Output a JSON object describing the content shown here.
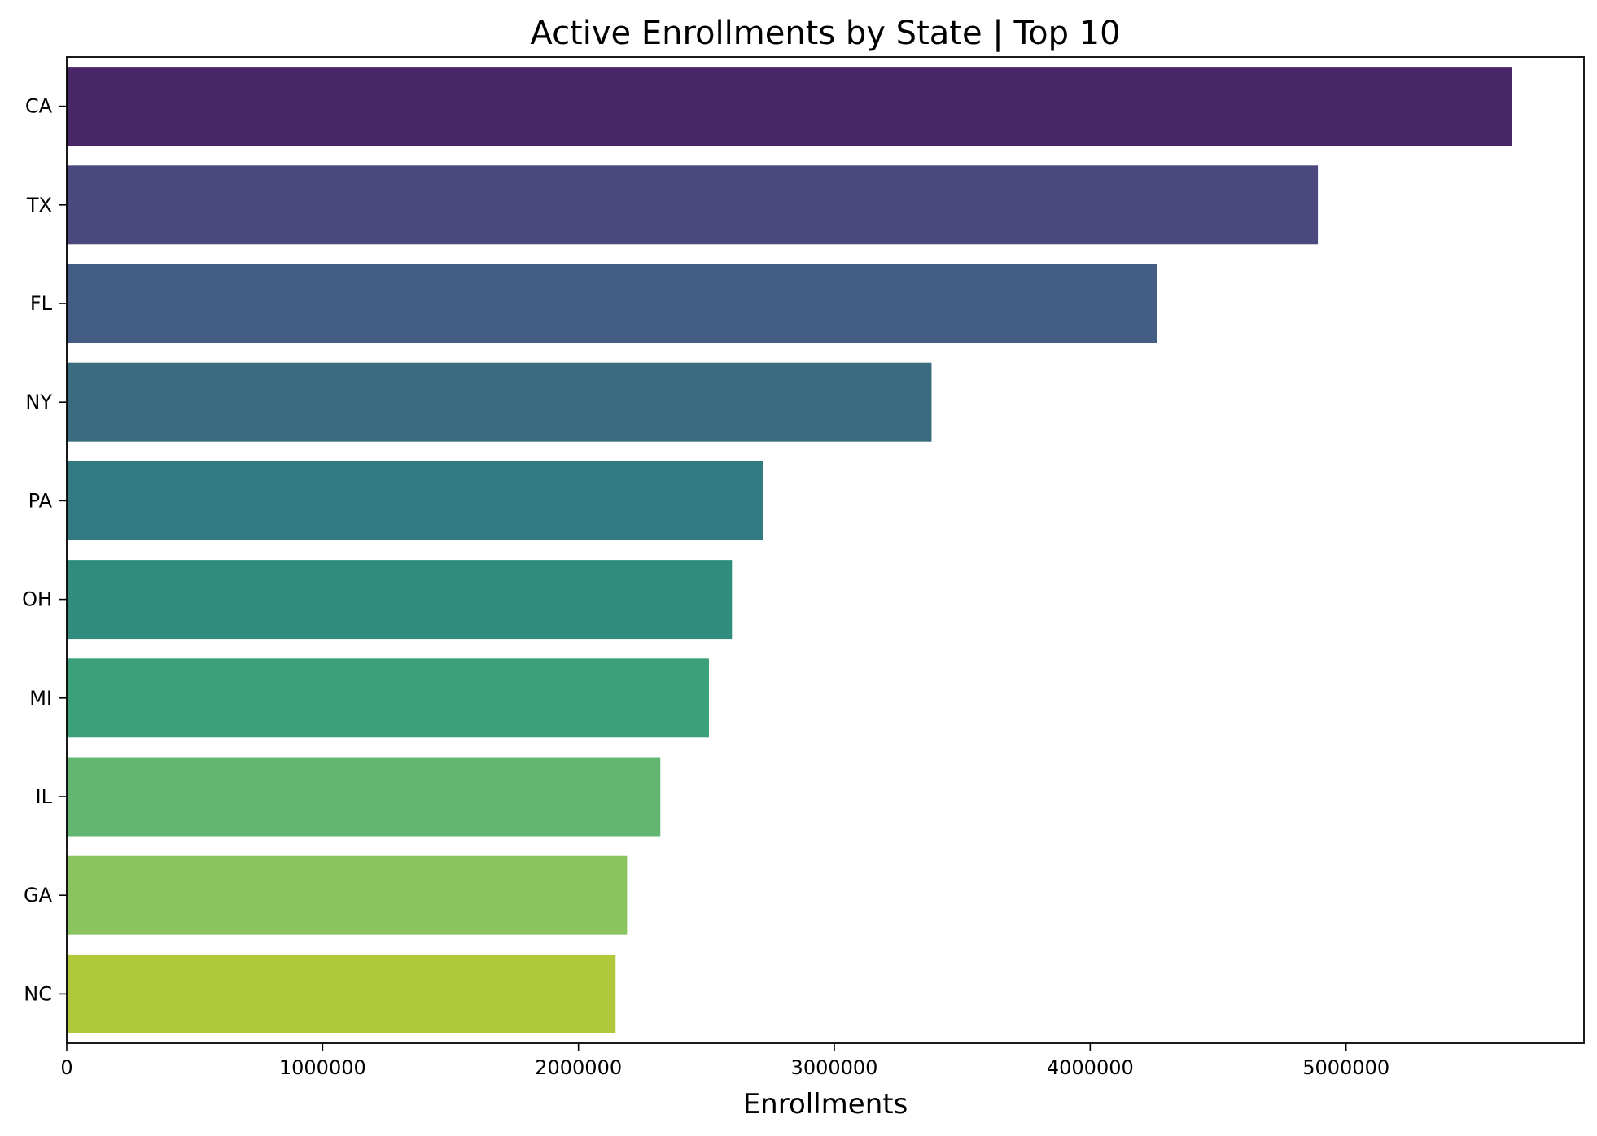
{
  "chart_data": {
    "type": "bar",
    "orientation": "horizontal",
    "title": "Active Enrollments by State | Top 10",
    "xlabel": "Enrollments",
    "ylabel": "",
    "xlim": [
      0,
      5930000
    ],
    "xticks": [
      0,
      1000000,
      2000000,
      3000000,
      4000000,
      5000000
    ],
    "xtick_labels": [
      "0",
      "1000000",
      "2000000",
      "3000000",
      "4000000",
      "5000000"
    ],
    "grid": false,
    "categories": [
      "CA",
      "TX",
      "FL",
      "NY",
      "PA",
      "OH",
      "MI",
      "IL",
      "GA",
      "NC"
    ],
    "values": [
      5650000,
      4890000,
      4260000,
      3380000,
      2720000,
      2600000,
      2510000,
      2320000,
      2190000,
      2145000
    ],
    "colors": [
      "#482667",
      "#4a487c",
      "#435d84",
      "#3a6c80",
      "#327a81",
      "#308d7e",
      "#3ca17a",
      "#62b672",
      "#8bc45e",
      "#b0c93b"
    ]
  }
}
